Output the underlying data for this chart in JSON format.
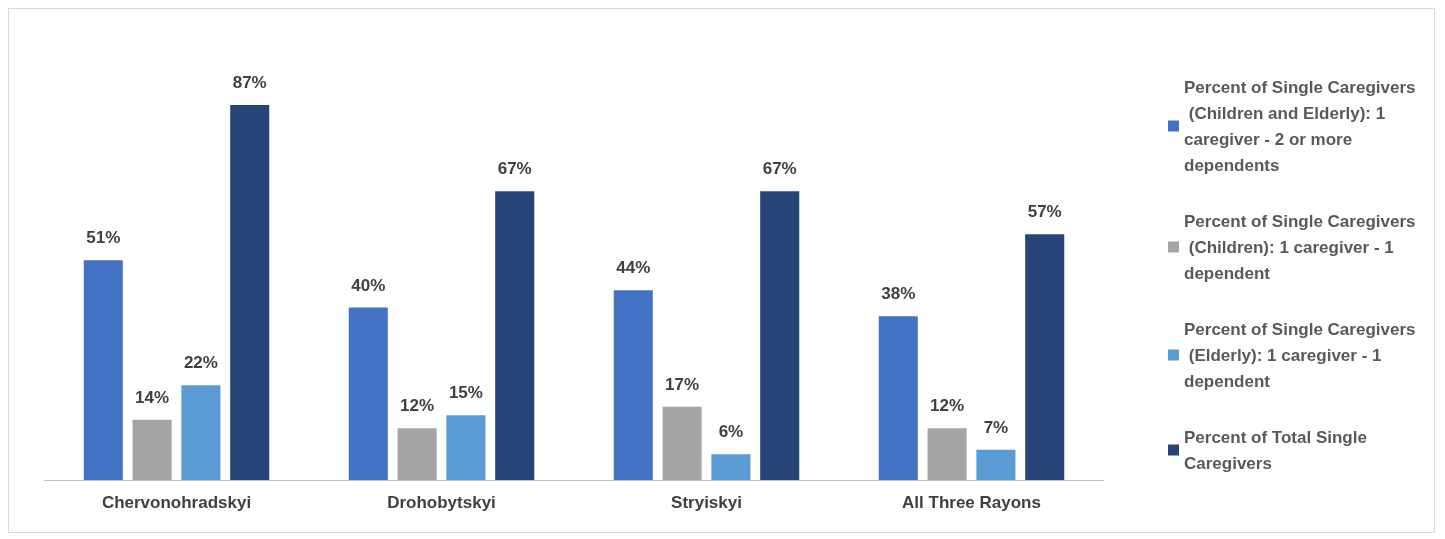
{
  "chart_data": {
    "type": "bar",
    "categories": [
      "Chervonohradskyi",
      "Drohobytskyi",
      "Stryiskyi",
      "All Three Rayons"
    ],
    "series": [
      {
        "name": "Percent of Single Caregivers (Children and Elderly): 1 caregiver - 2 or more dependents",
        "color": "#4472c4",
        "values": [
          51,
          40,
          44,
          38
        ],
        "value_labels": [
          "51%",
          "40%",
          "44%",
          "38%"
        ]
      },
      {
        "name": "Percent of Single Caregivers (Children): 1 caregiver - 1 dependent",
        "color": "#a5a5a5",
        "values": [
          14,
          12,
          17,
          12
        ],
        "value_labels": [
          "14%",
          "12%",
          "17%",
          "12%"
        ]
      },
      {
        "name": "Percent of Single Caregivers (Elderly): 1 caregiver - 1 dependent",
        "color": "#5b9bd5",
        "values": [
          22,
          15,
          6,
          7
        ],
        "value_labels": [
          "22%",
          "15%",
          "6%",
          "7%"
        ]
      },
      {
        "name": "Percent of Total Single Caregivers",
        "color": "#264478",
        "values": [
          87,
          67,
          67,
          57
        ],
        "value_labels": [
          "87%",
          "67%",
          "67%",
          "57%"
        ]
      }
    ],
    "legend": "right"
  }
}
